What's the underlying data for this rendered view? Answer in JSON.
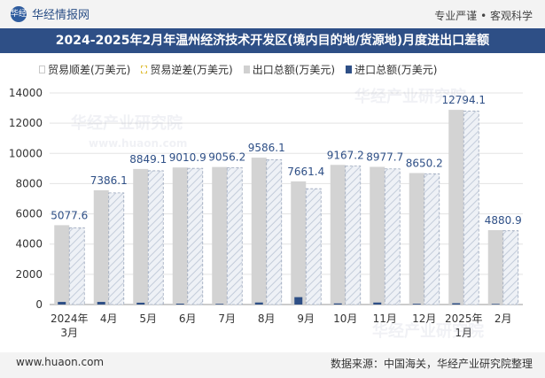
{
  "header": {
    "site_name": "华经情报网",
    "logo_text": "华经",
    "tagline": "专业严谨 • 客观科学"
  },
  "title_bar": {
    "title": "2024-2025年2月年温州经济技术开发区(境内目的地/货源地)月度进出口差额"
  },
  "legend": {
    "surplus": "贸易顺差(万美元)",
    "deficit": "贸易逆差(万美元)",
    "export": "出口总额(万美元)",
    "import": "进口总额(万美元)"
  },
  "watermarks": {
    "primary": "华经产业研究院",
    "url": "www.huaon.com"
  },
  "footer": {
    "url": "www.huaon.com",
    "source": "数据来源：中国海关，华经产业研究院整理"
  },
  "colors": {
    "header_bg": "#2e4f86",
    "export_bar": "#d3d3d3",
    "surplus_bar": "#dce3ee",
    "import_bar": "#2e4f86"
  },
  "chart_data": {
    "type": "bar",
    "title": "2024-2025年2月年温州经济技术开发区(境内目的地/货源地)月度进出口差额",
    "xlabel": "",
    "ylabel": "",
    "ylim": [
      0,
      14000
    ],
    "yticks": [
      0,
      2000,
      4000,
      6000,
      8000,
      10000,
      12000,
      14000
    ],
    "categories": [
      [
        "2024年",
        "3月"
      ],
      [
        "4月"
      ],
      [
        "5月"
      ],
      [
        "6月"
      ],
      [
        "7月"
      ],
      [
        "8月"
      ],
      [
        "9月"
      ],
      [
        "10月"
      ],
      [
        "11月"
      ],
      [
        "12月"
      ],
      [
        "2025年",
        "1月"
      ],
      [
        "2月"
      ]
    ],
    "series": [
      {
        "name": "贸易顺差(万美元)",
        "values": [
          5077.6,
          7386.1,
          8849.1,
          9010.9,
          9056.2,
          9586.1,
          7661.4,
          9167.2,
          8977.7,
          8650.2,
          12794.1,
          4880.9
        ]
      },
      {
        "name": "贸易逆差(万美元)",
        "values": [
          0,
          0,
          0,
          0,
          0,
          0,
          0,
          0,
          0,
          0,
          0,
          0
        ]
      },
      {
        "name": "出口总额(万美元)",
        "values": [
          5250,
          7560,
          8970,
          9070,
          9100,
          9720,
          8150,
          9240,
          9110,
          8700,
          12880,
          4920
        ]
      },
      {
        "name": "进口总额(万美元)",
        "values": [
          172.4,
          173.9,
          120.9,
          59.1,
          43.8,
          133.9,
          488.6,
          72.8,
          132.3,
          49.8,
          85.9,
          39.1
        ]
      }
    ],
    "data_labels": [
      "5077.6",
      "7386.1",
      "8849.1",
      "9010.9",
      "9056.2",
      "9586.1",
      "7661.4",
      "9167.2",
      "8977.7",
      "8650.2",
      "12794.1",
      "4880.9"
    ],
    "grid": true,
    "legend_position": "top"
  }
}
